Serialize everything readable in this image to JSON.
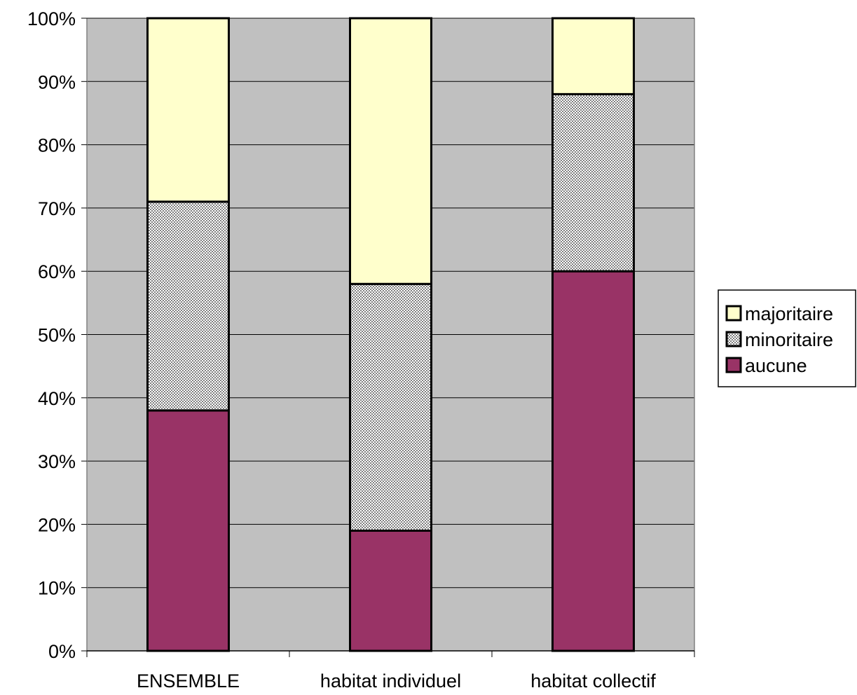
{
  "chart_data": {
    "type": "bar",
    "stacked": true,
    "categories": [
      "ENSEMBLE",
      "habitat individuel",
      "habitat collectif"
    ],
    "series": [
      {
        "name": "aucune",
        "values": [
          38,
          19,
          60
        ],
        "color": "#993366",
        "pattern": "solid"
      },
      {
        "name": "minoritaire",
        "values": [
          33,
          39,
          28
        ],
        "color": "#c0c0c0",
        "pattern": "checker"
      },
      {
        "name": "majoritaire",
        "values": [
          29,
          42,
          12
        ],
        "color": "#ffffcc",
        "pattern": "solid"
      }
    ],
    "ylim": [
      0,
      100
    ],
    "y_ticks": [
      "0%",
      "10%",
      "20%",
      "30%",
      "40%",
      "50%",
      "60%",
      "70%",
      "80%",
      "90%",
      "100%"
    ],
    "grid": true,
    "plot_background": "#c0c0c0",
    "legend": {
      "position": "right",
      "order": [
        "majoritaire",
        "minoritaire",
        "aucune"
      ]
    }
  }
}
